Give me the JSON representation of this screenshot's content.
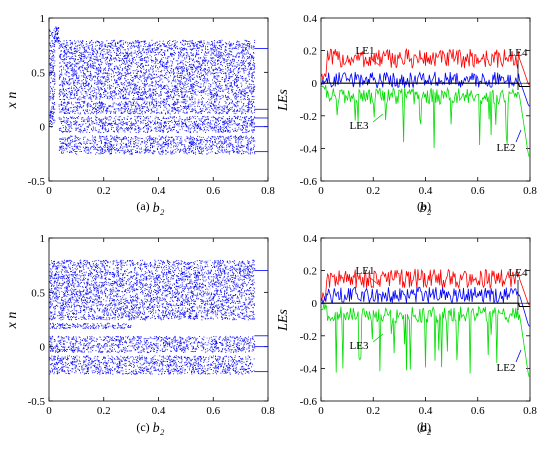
{
  "chart_data": [
    {
      "panel": "(a)",
      "type": "scatter",
      "xlabel": "b₂",
      "ylabel": "x n",
      "xlim": [
        0,
        0.8
      ],
      "ylim": [
        -0.5,
        1
      ],
      "xticks": [
        "0",
        "0.2",
        "0.4",
        "0.6",
        "0.8"
      ],
      "yticks": [
        "-0.5",
        "0",
        "0.5",
        "1"
      ],
      "color": "#0000ff",
      "series": [
        {
          "bands": [
            {
              "x": [
                0.0,
                0.02
              ],
              "y": [
                0.0,
                0.9
              ]
            },
            {
              "x": [
                0.02,
                0.035
              ],
              "y": [
                0.78,
                0.92
              ]
            },
            {
              "x": [
                0.035,
                0.75
              ],
              "y": [
                0.55,
                0.8
              ]
            },
            {
              "x": [
                0.035,
                0.75
              ],
              "y": [
                0.25,
                0.55
              ]
            },
            {
              "x": [
                0.035,
                0.75
              ],
              "y": [
                0.12,
                0.24
              ]
            },
            {
              "x": [
                0.035,
                0.75
              ],
              "y": [
                -0.05,
                0.1
              ]
            },
            {
              "x": [
                0.035,
                0.75
              ],
              "y": [
                -0.25,
                -0.08
              ]
            }
          ],
          "periodic_levels": [
            -0.23,
            0.0,
            0.08,
            0.16,
            0.72
          ]
        }
      ]
    },
    {
      "panel": "(b)",
      "type": "line",
      "xlabel": "b₂",
      "ylabel": "LEs",
      "xlim": [
        0,
        0.8
      ],
      "ylim": [
        -0.6,
        0.4
      ],
      "xticks": [
        "0",
        "0.2",
        "0.4",
        "0.6",
        "0.8"
      ],
      "yticks": [
        "-0.6",
        "-0.4",
        "-0.2",
        "0",
        "0.2",
        "0.4"
      ],
      "annotations": [
        "LE1",
        "LE4",
        "LE3",
        "LE2"
      ],
      "series": [
        {
          "name": "LE1",
          "color": "#ff0000",
          "mean": 0.15,
          "amp": 0.06,
          "end_value": -0.01
        },
        {
          "name": "LE2",
          "color": "#0000ff",
          "mean": 0.02,
          "amp": 0.05,
          "end_value": -0.14
        },
        {
          "name": "LE3",
          "color": "#00dd00",
          "mean": -0.08,
          "amp": 0.05,
          "end_value": -0.45,
          "dips_to": -0.45
        },
        {
          "name": "LE4",
          "color": "#000000",
          "mean": 0.0,
          "amp": 0.0,
          "end_value": -0.02
        }
      ]
    },
    {
      "panel": "(c)",
      "type": "scatter",
      "xlabel": "b₂",
      "ylabel": "x n",
      "xlim": [
        0,
        0.8
      ],
      "ylim": [
        -0.5,
        1
      ],
      "xticks": [
        "0",
        "0.2",
        "0.4",
        "0.6",
        "0.8"
      ],
      "yticks": [
        "-0.5",
        "0",
        "0.5",
        "1"
      ],
      "color": "#0000ff",
      "series": [
        {
          "bands": [
            {
              "x": [
                0.0,
                0.75
              ],
              "y": [
                0.55,
                0.8
              ]
            },
            {
              "x": [
                0.0,
                0.75
              ],
              "y": [
                0.25,
                0.55
              ]
            },
            {
              "x": [
                0.0,
                0.3
              ],
              "y": [
                0.17,
                0.22
              ]
            },
            {
              "x": [
                0.0,
                0.75
              ],
              "y": [
                -0.05,
                0.1
              ]
            },
            {
              "x": [
                0.0,
                0.75
              ],
              "y": [
                -0.25,
                -0.08
              ]
            }
          ],
          "periodic_levels": [
            -0.23,
            0.0,
            0.1,
            0.7
          ]
        }
      ]
    },
    {
      "panel": "(d)",
      "type": "line",
      "xlabel": "b₂",
      "ylabel": "LEs",
      "xlim": [
        0,
        0.8
      ],
      "ylim": [
        -0.6,
        0.4
      ],
      "xticks": [
        "0",
        "0.2",
        "0.4",
        "0.6",
        "0.8"
      ],
      "yticks": [
        "-0.6",
        "-0.4",
        "-0.2",
        "0",
        "0.2",
        "0.4"
      ],
      "annotations": [
        "LE1",
        "LE4",
        "LE3",
        "LE2"
      ],
      "series": [
        {
          "name": "LE1",
          "color": "#ff0000",
          "mean": 0.15,
          "amp": 0.06,
          "end_value": -0.01
        },
        {
          "name": "LE2",
          "color": "#0000ff",
          "mean": 0.05,
          "amp": 0.05,
          "end_value": -0.14
        },
        {
          "name": "LE3",
          "color": "#00dd00",
          "mean": -0.07,
          "amp": 0.05,
          "end_value": -0.45,
          "dips_to": -0.45
        },
        {
          "name": "LE4",
          "color": "#000000",
          "mean": 0.0,
          "amp": 0.0,
          "end_value": -0.02
        }
      ]
    }
  ]
}
